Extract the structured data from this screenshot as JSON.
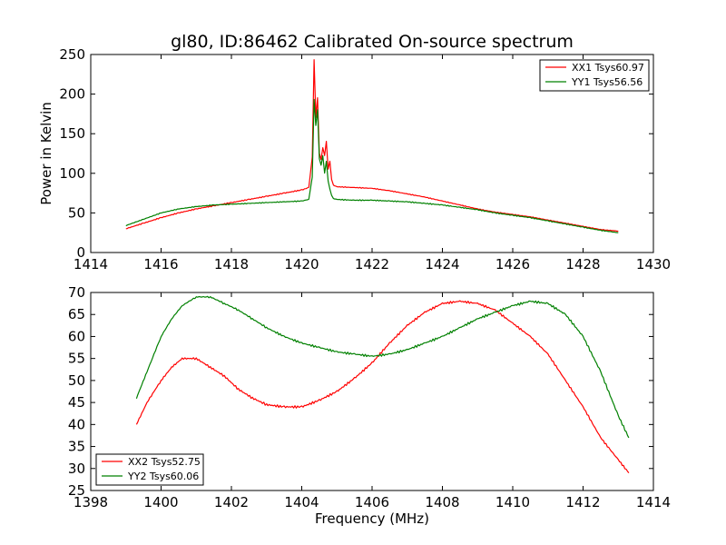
{
  "chart_data": [
    {
      "type": "line",
      "title": "gl80, ID:86462 Calibrated On-source spectrum",
      "xlabel": "",
      "ylabel": "Power in Kelvin",
      "xlim": [
        1414,
        1430
      ],
      "ylim": [
        0,
        250
      ],
      "xticks": [
        1414,
        1416,
        1418,
        1420,
        1422,
        1424,
        1426,
        1428,
        1430
      ],
      "yticks": [
        0,
        50,
        100,
        150,
        200,
        250
      ],
      "legend_position": "top-right",
      "series": [
        {
          "name": "XX1 Tsys60.97",
          "color": "#ff0000",
          "x": [
            1415.0,
            1415.5,
            1416.0,
            1416.5,
            1417.0,
            1417.5,
            1418.0,
            1418.5,
            1419.0,
            1419.5,
            1420.0,
            1420.2,
            1420.3,
            1420.35,
            1420.4,
            1420.45,
            1420.5,
            1420.55,
            1420.6,
            1420.65,
            1420.7,
            1420.75,
            1420.8,
            1420.85,
            1420.9,
            1421.0,
            1421.5,
            1422.0,
            1422.5,
            1423.0,
            1423.5,
            1424.0,
            1424.5,
            1425.0,
            1425.5,
            1426.0,
            1426.5,
            1427.0,
            1427.5,
            1428.0,
            1428.5,
            1429.0
          ],
          "values": [
            30,
            37,
            44,
            50,
            55,
            59,
            63,
            67,
            71,
            75,
            79,
            82,
            120,
            243,
            170,
            195,
            125,
            117,
            132,
            122,
            140,
            105,
            115,
            92,
            85,
            83,
            82,
            81,
            78,
            74,
            70,
            65,
            60,
            55,
            51,
            48,
            45,
            41,
            37,
            33,
            29,
            27
          ]
        },
        {
          "name": "YY1 Tsys56.56",
          "color": "#008000",
          "x": [
            1415.0,
            1415.5,
            1416.0,
            1416.5,
            1417.0,
            1417.5,
            1418.0,
            1418.5,
            1419.0,
            1419.5,
            1420.0,
            1420.2,
            1420.3,
            1420.35,
            1420.4,
            1420.45,
            1420.5,
            1420.55,
            1420.6,
            1420.65,
            1420.7,
            1420.75,
            1420.8,
            1420.85,
            1420.9,
            1421.0,
            1421.5,
            1422.0,
            1422.5,
            1423.0,
            1423.5,
            1424.0,
            1424.5,
            1425.0,
            1425.5,
            1426.0,
            1426.5,
            1427.0,
            1427.5,
            1428.0,
            1428.5,
            1429.0
          ],
          "values": [
            34,
            42,
            50,
            55,
            58,
            60,
            61,
            62,
            63,
            64,
            65,
            67,
            95,
            193,
            160,
            180,
            118,
            110,
            122,
            100,
            115,
            90,
            80,
            72,
            68,
            67,
            66,
            66,
            65,
            64,
            62,
            60,
            57,
            54,
            50,
            47,
            44,
            40,
            36,
            32,
            28,
            25
          ]
        }
      ]
    },
    {
      "type": "line",
      "title": "",
      "xlabel": "Frequency (MHz)",
      "ylabel": "",
      "xlim": [
        1398,
        1414
      ],
      "ylim": [
        25,
        70
      ],
      "xticks": [
        1398,
        1400,
        1402,
        1404,
        1406,
        1408,
        1410,
        1412,
        1414
      ],
      "yticks": [
        25,
        30,
        35,
        40,
        45,
        50,
        55,
        60,
        65,
        70
      ],
      "legend_position": "lower-left",
      "series": [
        {
          "name": "XX2 Tsys52.75",
          "color": "#ff0000",
          "x": [
            1399.3,
            1399.6,
            1400.0,
            1400.3,
            1400.6,
            1401.0,
            1401.4,
            1401.8,
            1402.2,
            1402.6,
            1403.0,
            1403.5,
            1404.0,
            1404.5,
            1405.0,
            1405.5,
            1406.0,
            1406.5,
            1407.0,
            1407.5,
            1408.0,
            1408.5,
            1409.0,
            1409.5,
            1410.0,
            1410.5,
            1411.0,
            1411.5,
            1412.0,
            1412.5,
            1413.0,
            1413.3
          ],
          "values": [
            40,
            45,
            50,
            53,
            55,
            55,
            53,
            51,
            48,
            46,
            44.5,
            44,
            44,
            45.5,
            47.5,
            50.5,
            54,
            58.5,
            62.5,
            65.5,
            67.5,
            68,
            67.5,
            66,
            63,
            60,
            56,
            50,
            44,
            37,
            32,
            29
          ]
        },
        {
          "name": "YY2 Tsys60.06",
          "color": "#008000",
          "x": [
            1399.3,
            1399.6,
            1400.0,
            1400.3,
            1400.6,
            1401.0,
            1401.4,
            1401.8,
            1402.2,
            1402.6,
            1403.0,
            1403.5,
            1404.0,
            1404.5,
            1405.0,
            1405.5,
            1406.0,
            1406.5,
            1407.0,
            1407.5,
            1408.0,
            1408.5,
            1409.0,
            1409.5,
            1410.0,
            1410.5,
            1411.0,
            1411.5,
            1412.0,
            1412.5,
            1413.0,
            1413.3
          ],
          "values": [
            46,
            52,
            60,
            64,
            67,
            69,
            69,
            67.5,
            66,
            64,
            62,
            60,
            58.5,
            57.5,
            56.5,
            56,
            55.5,
            56,
            57,
            58.5,
            60,
            62,
            64,
            65.5,
            67,
            68,
            67.5,
            65,
            60,
            52,
            42,
            37
          ]
        }
      ]
    }
  ]
}
